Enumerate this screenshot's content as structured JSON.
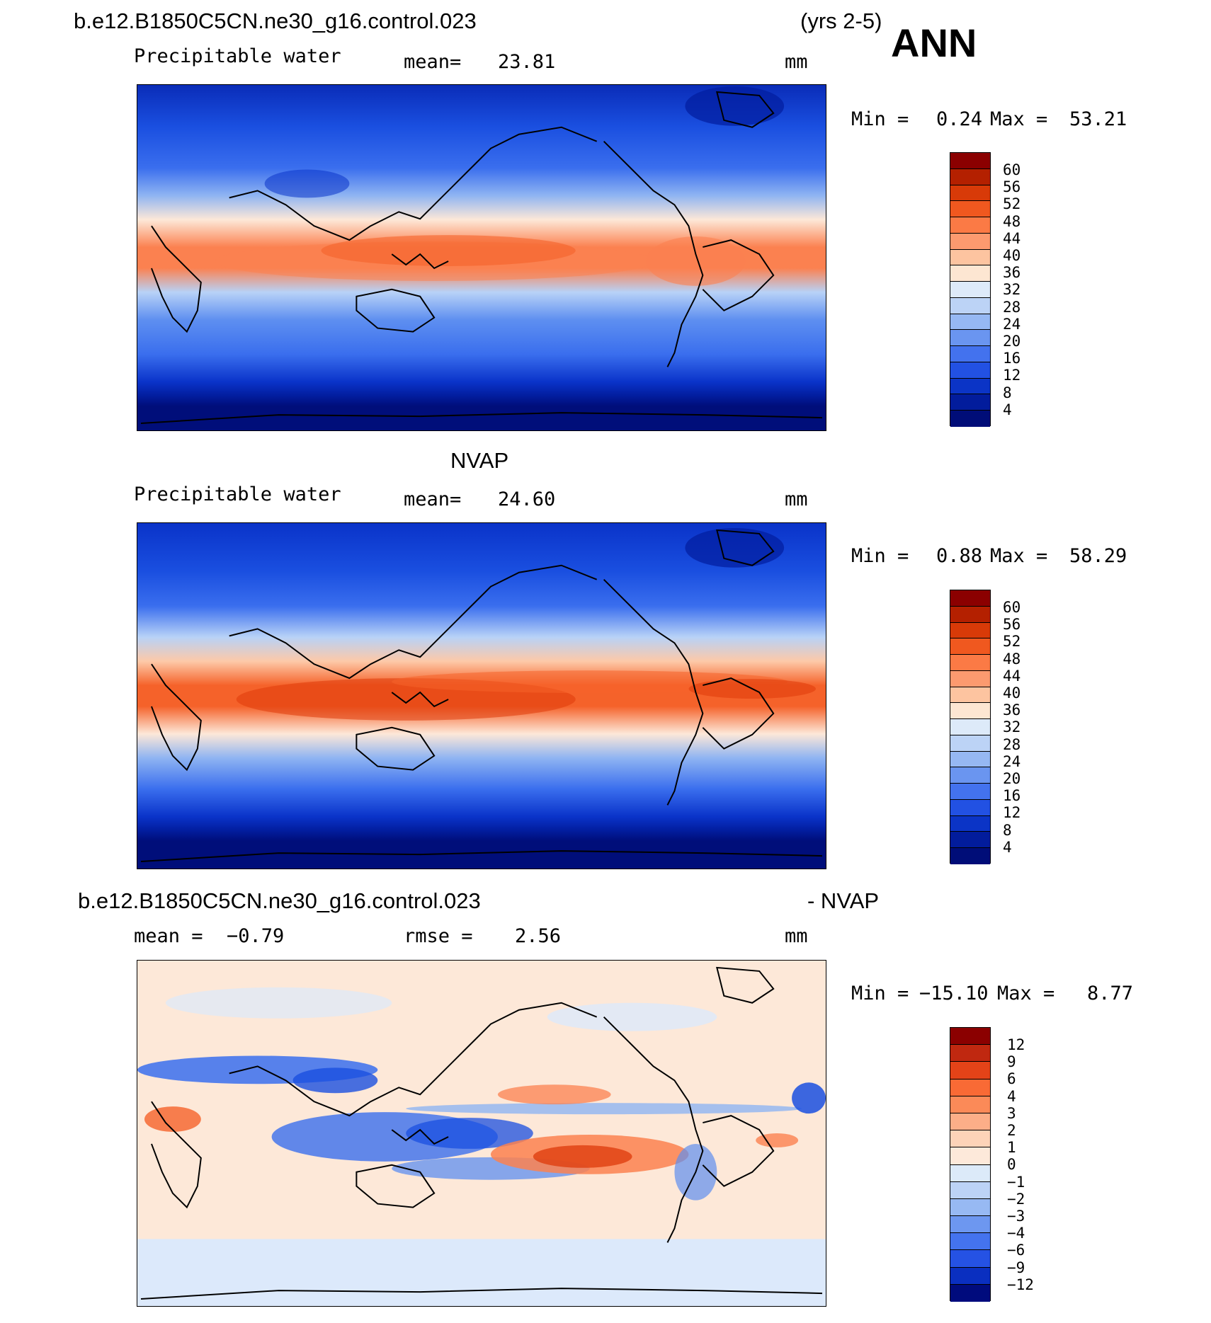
{
  "header": {
    "case_name": "b.e12.B1850C5CN.ne30_g16.control.023",
    "years": "(yrs 2-5)",
    "season": "ANN"
  },
  "panels": [
    {
      "id": "model",
      "title": "",
      "variable": "Precipitable water",
      "stat1_label": "mean=",
      "stat1_value": "23.81",
      "stat2_label": "",
      "stat2_value": "",
      "units": "mm",
      "min_label": "Min =",
      "min_value": "0.24",
      "max_label": "Max =",
      "max_value": "53.21",
      "levels": [
        "60",
        "56",
        "52",
        "48",
        "44",
        "40",
        "36",
        "32",
        "28",
        "24",
        "20",
        "16",
        "12",
        "8",
        "4"
      ]
    },
    {
      "id": "obs",
      "title": "NVAP",
      "variable": "Precipitable water",
      "stat1_label": "mean=",
      "stat1_value": "24.60",
      "stat2_label": "",
      "stat2_value": "",
      "units": "mm",
      "min_label": "Min =",
      "min_value": "0.88",
      "max_label": "Max =",
      "max_value": "58.29",
      "levels": [
        "60",
        "56",
        "52",
        "48",
        "44",
        "40",
        "36",
        "32",
        "28",
        "24",
        "20",
        "16",
        "12",
        "8",
        "4"
      ]
    },
    {
      "id": "diff",
      "title_left": "b.e12.B1850C5CN.ne30_g16.control.023",
      "title_right": "- NVAP",
      "variable": "",
      "stat1_label": "mean =",
      "stat1_value": "−0.79",
      "stat2_label": "rmse =",
      "stat2_value": "2.56",
      "units": "mm",
      "min_label": "Min =",
      "min_value": "−15.10",
      "max_label": "Max =",
      "max_value": "8.77",
      "levels": [
        "12",
        "9",
        "6",
        "4",
        "3",
        "2",
        "1",
        "0",
        "−1",
        "−2",
        "−3",
        "−4",
        "−6",
        "−9",
        "−12"
      ]
    }
  ],
  "colors": {
    "scale": [
      "#7a0000",
      "#b51e00",
      "#de3a0a",
      "#f5622a",
      "#fb8150",
      "#fca27c",
      "#fdc9a8",
      "#fde8d8",
      "#dce9fb",
      "#b8d2f7",
      "#8fb4f2",
      "#5e8ff0",
      "#3a6eee",
      "#1a4fe0",
      "#0a33c9",
      "#021d9e",
      "#000e7a"
    ],
    "colorbar_main": [
      "#8b0000",
      "#b42000",
      "#d83a08",
      "#f0581f",
      "#fb7a45",
      "#fc9a6f",
      "#fdc4a0",
      "#fde6d2",
      "#ddeaf9",
      "#bcd3f6",
      "#96b8f3",
      "#6a95f0",
      "#4372ee",
      "#2251e3",
      "#0b34c6",
      "#021c9c",
      "#000d78"
    ],
    "colorbar_diff": [
      "#8b0000",
      "#c02810",
      "#e44318",
      "#f96a35",
      "#fb8a58",
      "#fcae88",
      "#fdd3b8",
      "#fde9da",
      "#dceaf9",
      "#bcd3f6",
      "#97b9f3",
      "#6d97f0",
      "#4473ee",
      "#2552e4",
      "#0a2fc0",
      "#000b7d"
    ]
  }
}
